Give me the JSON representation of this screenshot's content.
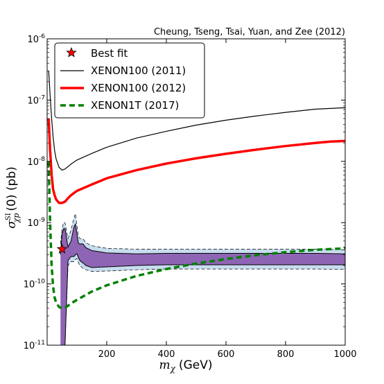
{
  "chart_data": {
    "type": "line",
    "credit": "Cheung, Tseng, Tsai, Yuan, and Zee (2012)",
    "xlabel": "m_χ (GeV)",
    "xlabel_parts": {
      "symbol": "m",
      "subscript": "χ",
      "unit": "(GeV)"
    },
    "ylabel": "σ_χp^SI (0) (pb)",
    "ylabel_parts": {
      "symbol": "σ",
      "superscript": "SI",
      "subscript": "χp",
      "rest": "(0) (pb)"
    },
    "xlim": [
      0,
      1000
    ],
    "ylim": [
      1e-11,
      1e-06
    ],
    "yscale": "log",
    "grid": false,
    "legend_position": "top-left",
    "x_ticks": [
      {
        "value": 200,
        "label": "200"
      },
      {
        "value": 400,
        "label": "400"
      },
      {
        "value": 600,
        "label": "600"
      },
      {
        "value": 800,
        "label": "800"
      },
      {
        "value": 1000,
        "label": "1000"
      }
    ],
    "y_ticks": [
      {
        "exp": -11,
        "base": "10",
        "sup": "-11"
      },
      {
        "exp": -10,
        "base": "10",
        "sup": "-10"
      },
      {
        "exp": -9,
        "base": "10",
        "sup": "-9"
      },
      {
        "exp": -8,
        "base": "10",
        "sup": "-8"
      },
      {
        "exp": -7,
        "base": "10",
        "sup": "-7"
      },
      {
        "exp": -6,
        "base": "10",
        "sup": "-6"
      }
    ],
    "series": [
      {
        "name": "XENON100 (2011)",
        "color": "#000000",
        "style": "solid-thin",
        "x": [
          5,
          10,
          15,
          20,
          25,
          30,
          40,
          50,
          60,
          70,
          80,
          100,
          150,
          200,
          300,
          400,
          500,
          600,
          700,
          800,
          900,
          1000
        ],
        "y": [
          3e-07,
          1.2e-07,
          5e-08,
          2.5e-08,
          1.5e-08,
          1.1e-08,
          8e-09,
          7.2e-09,
          7.5e-09,
          8.2e-09,
          9e-09,
          1.05e-08,
          1.35e-08,
          1.7e-08,
          2.4e-08,
          3.1e-08,
          3.9e-08,
          4.7e-08,
          5.5e-08,
          6.3e-08,
          7.1e-08,
          7.5e-08
        ]
      },
      {
        "name": "XENON100 (2012)",
        "color": "#ff0000",
        "style": "solid-thick",
        "x": [
          5,
          10,
          15,
          20,
          25,
          30,
          40,
          50,
          60,
          70,
          80,
          100,
          150,
          200,
          300,
          400,
          500,
          600,
          700,
          800,
          900,
          950,
          1000
        ],
        "y": [
          5e-08,
          1.5e-08,
          6e-09,
          3.5e-09,
          2.8e-09,
          2.4e-09,
          2.1e-09,
          2.1e-09,
          2.2e-09,
          2.5e-09,
          2.8e-09,
          3.3e-09,
          4.2e-09,
          5.3e-09,
          7.2e-09,
          9.2e-09,
          1.12e-08,
          1.33e-08,
          1.55e-08,
          1.78e-08,
          2e-08,
          2.1e-08,
          2.15e-08
        ]
      },
      {
        "name": "XENON1T (2017)",
        "color": "#008000",
        "style": "dashed-thick",
        "x": [
          5,
          10,
          15,
          20,
          25,
          30,
          40,
          50,
          60,
          70,
          80,
          100,
          150,
          200,
          300,
          400,
          500,
          600,
          700,
          800,
          900,
          1000
        ],
        "y": [
          1e-08,
          1e-09,
          2e-10,
          9e-11,
          6e-11,
          5e-11,
          4.2e-11,
          4e-11,
          4.1e-11,
          4.4e-11,
          4.8e-11,
          5.5e-11,
          7.5e-11,
          9.5e-11,
          1.35e-10,
          1.75e-10,
          2.15e-10,
          2.55e-10,
          2.95e-10,
          3.3e-10,
          3.6e-10,
          3.8e-10
        ]
      }
    ],
    "best_fit": {
      "name": "Best fit",
      "x": 50,
      "y": 3.7e-10,
      "color": "#ff0000"
    },
    "allowed_region": {
      "name": "",
      "inner_color": "#8e64b4",
      "outer_color": "#c8dcef",
      "inner_upper": {
        "x": [
          45,
          50,
          55,
          60,
          70,
          80,
          90,
          95,
          100,
          105,
          110,
          120,
          130,
          150,
          200,
          300,
          400,
          500,
          600,
          700,
          800,
          900,
          1000
        ],
        "y": [
          3e-10,
          6.5e-10,
          8e-10,
          8e-10,
          4e-10,
          5e-10,
          8.5e-10,
          9.5e-10,
          6.5e-10,
          4.6e-10,
          4.5e-10,
          4.5e-10,
          3.9e-10,
          3.5e-10,
          3.2e-10,
          3.1e-10,
          3.15e-10,
          3.15e-10,
          3.15e-10,
          3.15e-10,
          3.15e-10,
          3.15e-10,
          3.1e-10
        ]
      },
      "inner_lower": {
        "x": [
          45,
          50,
          55,
          60,
          70,
          80,
          90,
          95,
          100,
          105,
          110,
          120,
          130,
          150,
          200,
          300,
          400,
          500,
          600,
          700,
          800,
          900,
          1000
        ],
        "y": [
          1e-11,
          1e-11,
          1e-11,
          1e-11,
          2.4e-10,
          2.8e-10,
          2.8e-10,
          3e-10,
          3.1e-10,
          2.7e-10,
          2.4e-10,
          2.2e-10,
          2e-10,
          1.85e-10,
          1.9e-10,
          2e-10,
          2.05e-10,
          2.05e-10,
          2.05e-10,
          2.05e-10,
          2.05e-10,
          2.05e-10,
          2.05e-10
        ]
      },
      "outer_upper": {
        "x": [
          45,
          50,
          55,
          60,
          70,
          80,
          90,
          95,
          100,
          105,
          110,
          120,
          130,
          150,
          200,
          300,
          400,
          500,
          600,
          700,
          800,
          900,
          1000
        ],
        "y": [
          4.5e-10,
          8e-10,
          1e-09,
          1e-09,
          5.5e-10,
          7.5e-10,
          1.2e-09,
          1.4e-09,
          9e-10,
          6e-10,
          5.5e-10,
          5.5e-10,
          4.7e-10,
          4.2e-10,
          3.8e-10,
          3.7e-10,
          3.7e-10,
          3.7e-10,
          3.7e-10,
          3.7e-10,
          3.7e-10,
          3.7e-10,
          3.6e-10
        ]
      },
      "outer_lower": {
        "x": [
          45,
          50,
          55,
          60,
          70,
          80,
          90,
          95,
          100,
          105,
          110,
          120,
          130,
          150,
          200,
          300,
          400,
          500,
          600,
          700,
          800,
          900,
          1000
        ],
        "y": [
          1e-11,
          1e-11,
          1e-11,
          1e-11,
          2e-10,
          2.3e-10,
          2.3e-10,
          2.5e-10,
          2.6e-10,
          2.2e-10,
          2e-10,
          1.8e-10,
          1.7e-10,
          1.6e-10,
          1.62e-10,
          1.7e-10,
          1.75e-10,
          1.75e-10,
          1.75e-10,
          1.75e-10,
          1.75e-10,
          1.75e-10,
          1.72e-10
        ]
      }
    }
  }
}
